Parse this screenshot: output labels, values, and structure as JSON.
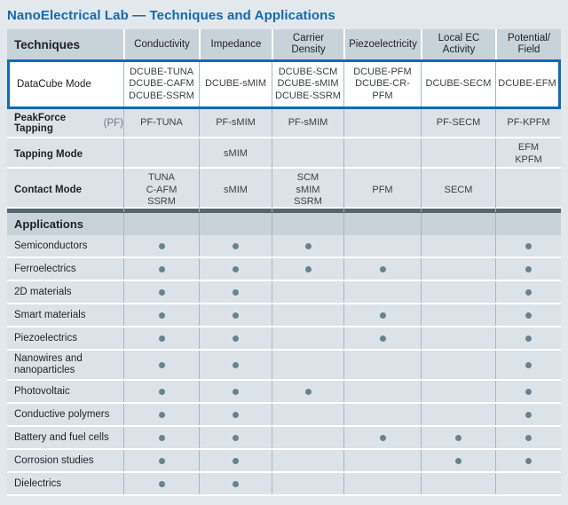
{
  "title": "NanoElectrical Lab — Techniques and Applications",
  "colors": {
    "accent_blue": "#1269b3",
    "header_bg": "#c8d2d9",
    "row_bg": "#dce3e8",
    "dark_bar": "#56666f",
    "dot": "#68828f"
  },
  "table": {
    "columns": [
      "Techniques",
      "Conductivity",
      "Impedance",
      "Carrier\nDensity",
      "Piezoelectricity",
      "Local EC\nActivity",
      "Potential/\nField"
    ],
    "technique_rows": [
      {
        "label": "DataCube Mode",
        "suffix": "",
        "highlight": true,
        "cells": [
          [
            "DCUBE-TUNA",
            "DCUBE-CAFM",
            "DCUBE-SSRM"
          ],
          [
            "DCUBE-sMIM"
          ],
          [
            "DCUBE-SCM",
            "DCUBE-sMIM",
            "DCUBE-SSRM"
          ],
          [
            "DCUBE-PFM",
            "DCUBE-CR-PFM"
          ],
          [
            "DCUBE-SECM"
          ],
          [
            "DCUBE-EFM"
          ]
        ]
      },
      {
        "label": "PeakForce Tapping",
        "suffix": "(PF)",
        "highlight": false,
        "cells": [
          [
            "PF-TUNA"
          ],
          [
            "PF-sMIM"
          ],
          [
            "PF-sMIM"
          ],
          [],
          [
            "PF-SECM"
          ],
          [
            "PF-KPFM"
          ]
        ]
      },
      {
        "label": "Tapping Mode",
        "suffix": "",
        "highlight": false,
        "cells": [
          [],
          [
            "sMIM"
          ],
          [],
          [],
          [],
          [
            "EFM",
            "KPFM"
          ]
        ]
      },
      {
        "label": "Contact Mode",
        "suffix": "",
        "highlight": false,
        "cells": [
          [
            "TUNA",
            "C-AFM",
            "SSRM"
          ],
          [
            "sMIM"
          ],
          [
            "SCM",
            "sMIM",
            "SSRM"
          ],
          [
            "PFM"
          ],
          [
            "SECM"
          ],
          []
        ]
      }
    ],
    "applications_header": "Applications",
    "application_rows": [
      {
        "label": "Semiconductors",
        "dots": [
          1,
          1,
          1,
          0,
          0,
          1
        ]
      },
      {
        "label": "Ferroelectrics",
        "dots": [
          1,
          1,
          1,
          1,
          0,
          1
        ]
      },
      {
        "label": "2D materials",
        "dots": [
          1,
          1,
          0,
          0,
          0,
          1
        ]
      },
      {
        "label": "Smart materials",
        "dots": [
          1,
          1,
          0,
          1,
          0,
          1
        ]
      },
      {
        "label": "Piezoelectrics",
        "dots": [
          1,
          1,
          0,
          1,
          0,
          1
        ]
      },
      {
        "label": "Nanowires and nanoparticles",
        "dots": [
          1,
          1,
          0,
          0,
          0,
          1
        ]
      },
      {
        "label": "Photovoltaic",
        "dots": [
          1,
          1,
          1,
          0,
          0,
          1
        ]
      },
      {
        "label": "Conductive polymers",
        "dots": [
          1,
          1,
          0,
          0,
          0,
          1
        ]
      },
      {
        "label": "Battery and fuel cells",
        "dots": [
          1,
          1,
          0,
          1,
          1,
          1
        ]
      },
      {
        "label": "Corrosion studies",
        "dots": [
          1,
          1,
          0,
          0,
          1,
          1
        ]
      },
      {
        "label": "Dielectrics",
        "dots": [
          1,
          1,
          0,
          0,
          0,
          0
        ]
      }
    ]
  }
}
